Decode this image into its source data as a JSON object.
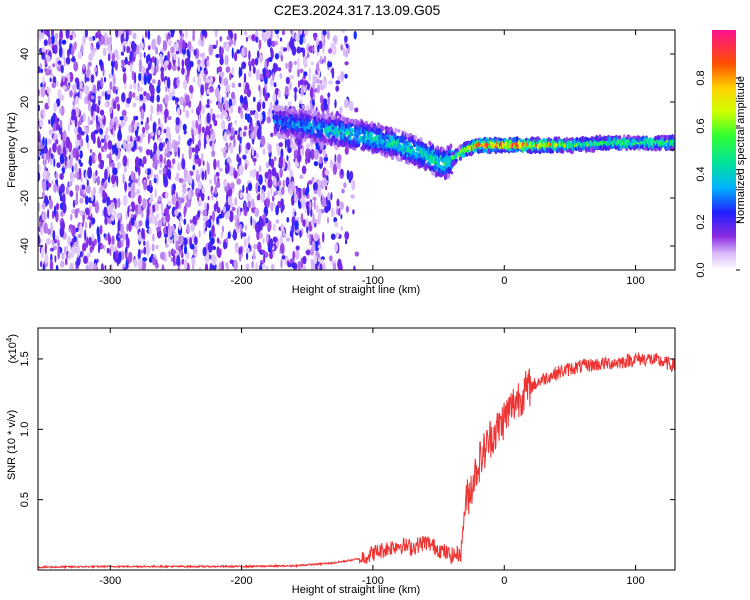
{
  "title": "C2E3.2024.317.13.09.G05",
  "colors": {
    "snr_line": "#ee3333",
    "background": "#ffffff",
    "axis": "#000000"
  },
  "chart_data": [
    {
      "type": "heatmap",
      "xlabel": "Height of straight line (km)",
      "ylabel": "Frequency (Hz)",
      "xlim": [
        -355,
        130
      ],
      "ylim": [
        -50,
        50
      ],
      "x_ticks": [
        -300,
        -200,
        -100,
        0,
        100
      ],
      "x_tick_labels": [
        "-300",
        "-200",
        "-100",
        "0",
        "100"
      ],
      "y_ticks": [
        -40,
        -20,
        0,
        20,
        40
      ],
      "y_tick_labels": [
        "-40",
        "-20",
        "0",
        "20",
        "40"
      ],
      "colorbar": {
        "label": "Normalized spectral amplitude",
        "range": [
          0,
          1
        ],
        "ticks": [
          0.0,
          0.2,
          0.4,
          0.6,
          0.8
        ],
        "tick_labels": [
          "0.0",
          "0.2",
          "0.4",
          "0.6",
          "0.8"
        ],
        "colormap": "rainbow"
      },
      "ridge": {
        "x": [
          -175,
          -160,
          -140,
          -120,
          -100,
          -80,
          -60,
          -50,
          -45,
          -40,
          -30,
          -20,
          -10,
          0,
          20,
          50,
          80,
          100,
          130
        ],
        "y": [
          12,
          11,
          9,
          7,
          5,
          2,
          -2,
          -5,
          -6,
          -4,
          0,
          2,
          2,
          2,
          2,
          2,
          3,
          3,
          3
        ],
        "amplitude": [
          0.3,
          0.35,
          0.4,
          0.45,
          0.45,
          0.45,
          0.45,
          0.5,
          0.5,
          0.55,
          0.7,
          0.9,
          0.95,
          0.95,
          0.9,
          0.6,
          0.55,
          0.55,
          0.6
        ]
      },
      "noise_region": {
        "x_range": [
          -355,
          -140
        ],
        "fading_to": -110,
        "amplitude": [
          0.05,
          0.25
        ]
      }
    },
    {
      "type": "line",
      "xlabel": "Height of straight line (km)",
      "ylabel": "SNR (10 * v/v)",
      "y_multiplier": "(x10^4)",
      "y_multiplier_base": "(x10",
      "y_multiplier_exp": "4",
      "y_multiplier_close": ")",
      "xlim": [
        -355,
        130
      ],
      "ylim": [
        0,
        1.72
      ],
      "x_ticks": [
        -300,
        -200,
        -100,
        0,
        100
      ],
      "x_tick_labels": [
        "-300",
        "-200",
        "-100",
        "0",
        "100"
      ],
      "y_ticks": [
        0.5,
        1.0,
        1.5
      ],
      "y_tick_labels": [
        "0.5",
        "1.0",
        "1.5"
      ],
      "series": [
        {
          "x": [
            -355,
            -300,
            -250,
            -200,
            -160,
            -130,
            -110,
            -100,
            -90,
            -80,
            -70,
            -60,
            -50,
            -40,
            -33,
            -30,
            -25,
            -20,
            -15,
            -10,
            -5,
            0,
            5,
            10,
            20,
            30,
            40,
            50,
            60,
            70,
            80,
            90,
            100,
            110,
            120,
            130
          ],
          "y": [
            0.02,
            0.025,
            0.025,
            0.025,
            0.03,
            0.05,
            0.08,
            0.12,
            0.15,
            0.18,
            0.16,
            0.2,
            0.15,
            0.1,
            0.12,
            0.45,
            0.6,
            0.75,
            0.85,
            0.95,
            1.0,
            1.08,
            1.15,
            1.22,
            1.3,
            1.36,
            1.4,
            1.43,
            1.45,
            1.46,
            1.47,
            1.48,
            1.5,
            1.5,
            1.48,
            1.45
          ]
        }
      ]
    }
  ]
}
